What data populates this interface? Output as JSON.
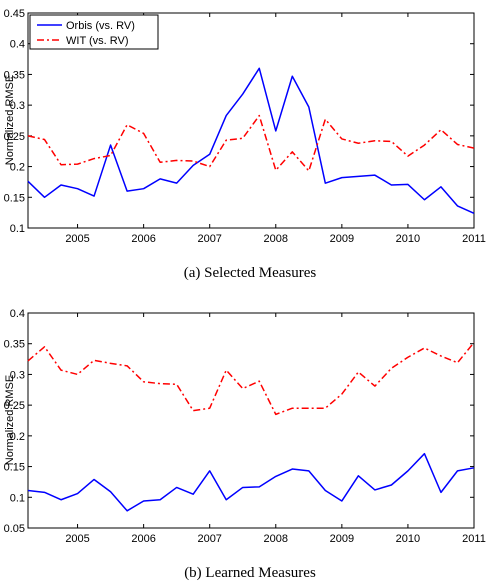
{
  "colors": {
    "orbis": "#0000ff",
    "wit": "#ff0000"
  },
  "chart_data": [
    {
      "type": "line",
      "caption": "(a)  Selected Measures",
      "ylabel": "Normalized RMSE",
      "xlim": [
        2004.25,
        2011
      ],
      "ylim": [
        0.1,
        0.45
      ],
      "yticks": [
        "0.1",
        "0.15",
        "0.2",
        "0.25",
        "0.3",
        "0.35",
        "0.4",
        "0.45"
      ],
      "xticks": [
        "2005",
        "2006",
        "2007",
        "2008",
        "2009",
        "2010",
        "2011"
      ],
      "grid": false,
      "legend": {
        "placement": "top-left",
        "boxed": true
      },
      "series": [
        {
          "name": "Orbis (vs. RV)",
          "color": "#0000ff",
          "style": "solid",
          "x": [
            2004.25,
            2004.5,
            2004.75,
            2005,
            2005.25,
            2005.5,
            2005.75,
            2006,
            2006.25,
            2006.5,
            2006.75,
            2007,
            2007.25,
            2007.5,
            2007.75,
            2008,
            2008.25,
            2008.5,
            2008.75,
            2009,
            2009.25,
            2009.5,
            2009.75,
            2010,
            2010.25,
            2010.5,
            2010.75,
            2011
          ],
          "y": [
            0.176,
            0.15,
            0.17,
            0.164,
            0.152,
            0.235,
            0.16,
            0.164,
            0.18,
            0.173,
            0.202,
            0.22,
            0.283,
            0.318,
            0.36,
            0.258,
            0.347,
            0.297,
            0.173,
            0.182,
            0.184,
            0.186,
            0.17,
            0.171,
            0.146,
            0.167,
            0.136,
            0.124
          ]
        },
        {
          "name": "WIT (vs. RV)",
          "color": "#ff0000",
          "style": "dash-dot",
          "x": [
            2004.25,
            2004.5,
            2004.75,
            2005,
            2005.25,
            2005.5,
            2005.75,
            2006,
            2006.25,
            2006.5,
            2006.75,
            2007,
            2007.25,
            2007.5,
            2007.75,
            2008,
            2008.25,
            2008.5,
            2008.75,
            2009,
            2009.25,
            2009.5,
            2009.75,
            2010,
            2010.25,
            2010.5,
            2010.75,
            2011
          ],
          "y": [
            0.25,
            0.244,
            0.203,
            0.204,
            0.213,
            0.218,
            0.268,
            0.254,
            0.207,
            0.21,
            0.209,
            0.2,
            0.243,
            0.246,
            0.283,
            0.194,
            0.224,
            0.193,
            0.277,
            0.245,
            0.238,
            0.242,
            0.241,
            0.217,
            0.235,
            0.26,
            0.236,
            0.23
          ]
        }
      ]
    },
    {
      "type": "line",
      "caption": "(b)  Learned Measures",
      "ylabel": "Normalized RMSE",
      "xlim": [
        2004.25,
        2011
      ],
      "ylim": [
        0.05,
        0.4
      ],
      "yticks": [
        "0.05",
        "0.1",
        "0.15",
        "0.2",
        "0.25",
        "0.3",
        "0.35",
        "0.4"
      ],
      "xticks": [
        "2005",
        "2006",
        "2007",
        "2008",
        "2009",
        "2010",
        "2011"
      ],
      "grid": false,
      "series": [
        {
          "name": "Orbis (vs. RV)",
          "color": "#0000ff",
          "style": "solid",
          "x": [
            2004.25,
            2004.5,
            2004.75,
            2005,
            2005.25,
            2005.5,
            2005.75,
            2006,
            2006.25,
            2006.5,
            2006.75,
            2007,
            2007.25,
            2007.5,
            2007.75,
            2008,
            2008.25,
            2008.5,
            2008.75,
            2009,
            2009.25,
            2009.5,
            2009.75,
            2010,
            2010.25,
            2010.5,
            2010.75,
            2011
          ],
          "y": [
            0.111,
            0.108,
            0.096,
            0.106,
            0.129,
            0.109,
            0.078,
            0.094,
            0.096,
            0.116,
            0.105,
            0.143,
            0.096,
            0.116,
            0.117,
            0.134,
            0.146,
            0.143,
            0.111,
            0.094,
            0.135,
            0.112,
            0.12,
            0.143,
            0.171,
            0.108,
            0.143,
            0.148
          ]
        },
        {
          "name": "WIT (vs. RV)",
          "color": "#ff0000",
          "style": "dash-dot",
          "x": [
            2004.25,
            2004.5,
            2004.75,
            2005,
            2005.25,
            2005.5,
            2005.75,
            2006,
            2006.25,
            2006.5,
            2006.75,
            2007,
            2007.25,
            2007.5,
            2007.75,
            2008,
            2008.25,
            2008.5,
            2008.75,
            2009,
            2009.25,
            2009.5,
            2009.75,
            2010,
            2010.25,
            2010.5,
            2010.75,
            2011
          ],
          "y": [
            0.322,
            0.345,
            0.307,
            0.3,
            0.323,
            0.318,
            0.314,
            0.288,
            0.285,
            0.284,
            0.241,
            0.245,
            0.307,
            0.277,
            0.289,
            0.235,
            0.245,
            0.245,
            0.245,
            0.268,
            0.304,
            0.281,
            0.31,
            0.328,
            0.343,
            0.33,
            0.319,
            0.352
          ]
        }
      ]
    }
  ]
}
